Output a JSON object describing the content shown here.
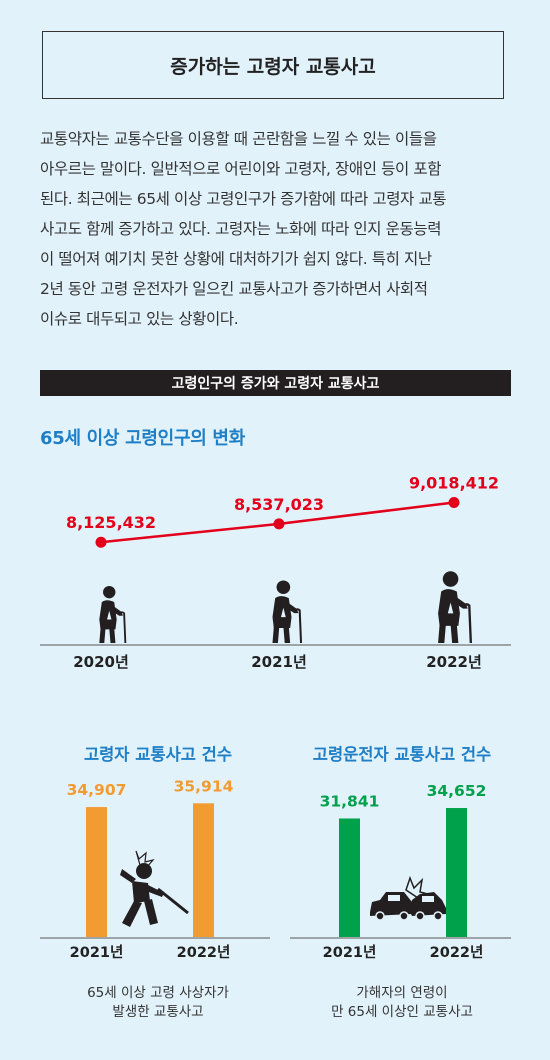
{
  "header": {
    "title": "증가하는 고령자 교통사고"
  },
  "intro_lines": [
    "교통약자는 교통수단을 이용할 때 곤란함을 느낄 수 있는 이들을",
    "아우르는 말이다. 일반적으로 어린이와 고령자, 장애인 등이 포함",
    "된다. 최근에는 65세 이상 고령인구가 증가함에 따라 고령자 교통",
    "사고도 함께 증가하고 있다. 고령자는 노화에 따라 인지 운동능력",
    "이 떨어져 예기치 못한 상황에 대처하기가 쉽지 않다. 특히 지난",
    "2년 동안 고령 운전자가 일으킨 교통사고가 증가하면서 사회적",
    "이슈로 대두되고 있는 상황이다."
  ],
  "section_bar": "고령인구의 증가와 고령자 교통사고",
  "colors": {
    "line": "#e2001a",
    "orange": "#f29b30",
    "green": "#00a14b",
    "blue": "#1f7fc6",
    "figure": "#231f20"
  },
  "icons": {
    "elderly": "elderly-with-cane-icon",
    "fall": "falling-elderly-icon",
    "crash": "car-crash-icon"
  },
  "chart_data": [
    {
      "type": "line",
      "title": "65세 이상 고령인구의 변화",
      "categories": [
        "2020년",
        "2021년",
        "2022년"
      ],
      "values": [
        8125432,
        8537023,
        9018412
      ],
      "value_labels": [
        "8,125,432",
        "8,537,023",
        "9,018,412"
      ]
    },
    {
      "type": "bar",
      "title": "고령자 교통사고 건수",
      "categories": [
        "2021년",
        "2022년"
      ],
      "values": [
        34907,
        35914
      ],
      "value_labels": [
        "34,907",
        "35,914"
      ],
      "caption": [
        "65세 이상 고령 사상자가",
        "발생한 교통사고"
      ]
    },
    {
      "type": "bar",
      "title": "고령운전자 교통사고 건수",
      "categories": [
        "2021년",
        "2022년"
      ],
      "values": [
        31841,
        34652
      ],
      "value_labels": [
        "31,841",
        "34,652"
      ],
      "caption": [
        "가해자의 연령이",
        "만 65세 이상인 교통사고"
      ]
    }
  ]
}
